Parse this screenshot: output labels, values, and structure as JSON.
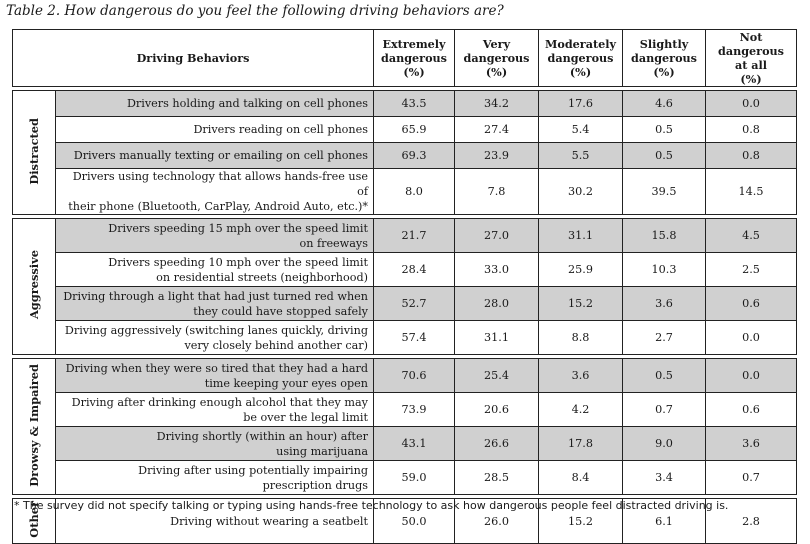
{
  "caption": "Table 2. How dangerous do you feel the following driving behaviors are?",
  "headers": {
    "behavior": "Driving Behaviors",
    "extremely": [
      "Extremely",
      "dangerous",
      "(%)"
    ],
    "very": [
      "Very",
      "dangerous",
      "(%)"
    ],
    "moderately": [
      "Moderately",
      "dangerous",
      "(%)"
    ],
    "slightly": [
      "Slightly",
      "dangerous",
      "(%)"
    ],
    "not": [
      "Not dangerous",
      "at all",
      "(%)"
    ]
  },
  "groups": {
    "distracted": {
      "label": "Distracted",
      "rows": [
        {
          "line1": "Drivers holding and talking on cell phones",
          "line2": "",
          "values": [
            "43.5",
            "34.2",
            "17.6",
            "4.6",
            "0.0"
          ]
        },
        {
          "line1": "Drivers reading on cell phones",
          "line2": "",
          "values": [
            "65.9",
            "27.4",
            "5.4",
            "0.5",
            "0.8"
          ]
        },
        {
          "line1": "Drivers manually texting or emailing on cell phones",
          "line2": "",
          "values": [
            "69.3",
            "23.9",
            "5.5",
            "0.5",
            "0.8"
          ]
        },
        {
          "line1": "Drivers using technology that allows hands-free use of",
          "line2": "their phone (Bluetooth, CarPlay, Android Auto, etc.)*",
          "values": [
            "8.0",
            "7.8",
            "30.2",
            "39.5",
            "14.5"
          ]
        }
      ]
    },
    "aggressive": {
      "label": "Aggressive",
      "rows": [
        {
          "line1": "Drivers speeding 15 mph over the speed limit",
          "line2": "on freeways",
          "values": [
            "21.7",
            "27.0",
            "31.1",
            "15.8",
            "4.5"
          ]
        },
        {
          "line1": "Drivers speeding 10 mph over the speed limit",
          "line2": "on residential streets (neighborhood)",
          "values": [
            "28.4",
            "33.0",
            "25.9",
            "10.3",
            "2.5"
          ]
        },
        {
          "line1": "Driving through a light that had just turned red when",
          "line2": "they could have stopped safely",
          "values": [
            "52.7",
            "28.0",
            "15.2",
            "3.6",
            "0.6"
          ]
        },
        {
          "line1": "Driving aggressively (switching lanes quickly, driving",
          "line2": "very closely behind another car)",
          "values": [
            "57.4",
            "31.1",
            "8.8",
            "2.7",
            "0.0"
          ]
        }
      ]
    },
    "drowsy": {
      "label": "Drowsy & Impaired",
      "rows": [
        {
          "line1": "Driving when they were so tired that they had a hard",
          "line2": "time keeping your eyes open",
          "values": [
            "70.6",
            "25.4",
            "3.6",
            "0.5",
            "0.0"
          ]
        },
        {
          "line1": "Driving after drinking enough alcohol that they may",
          "line2": "be over the legal limit",
          "values": [
            "73.9",
            "20.6",
            "4.2",
            "0.7",
            "0.6"
          ]
        },
        {
          "line1": "Driving shortly (within an hour) after",
          "line2": "using marijuana",
          "values": [
            "43.1",
            "26.6",
            "17.8",
            "9.0",
            "3.6"
          ]
        },
        {
          "line1": "Driving after using potentially impairing",
          "line2": "prescription drugs",
          "values": [
            "59.0",
            "28.5",
            "8.4",
            "3.4",
            "0.7"
          ]
        }
      ]
    },
    "other": {
      "label": "Other",
      "rows": [
        {
          "line1": "Driving without wearing a seatbelt",
          "line2": "",
          "values": [
            "50.0",
            "26.0",
            "15.2",
            "6.1",
            "2.8"
          ]
        }
      ]
    }
  },
  "footnote": "* The survey did not specify talking or typing using hands-free technology to ask how dangerous people feel distracted driving is."
}
